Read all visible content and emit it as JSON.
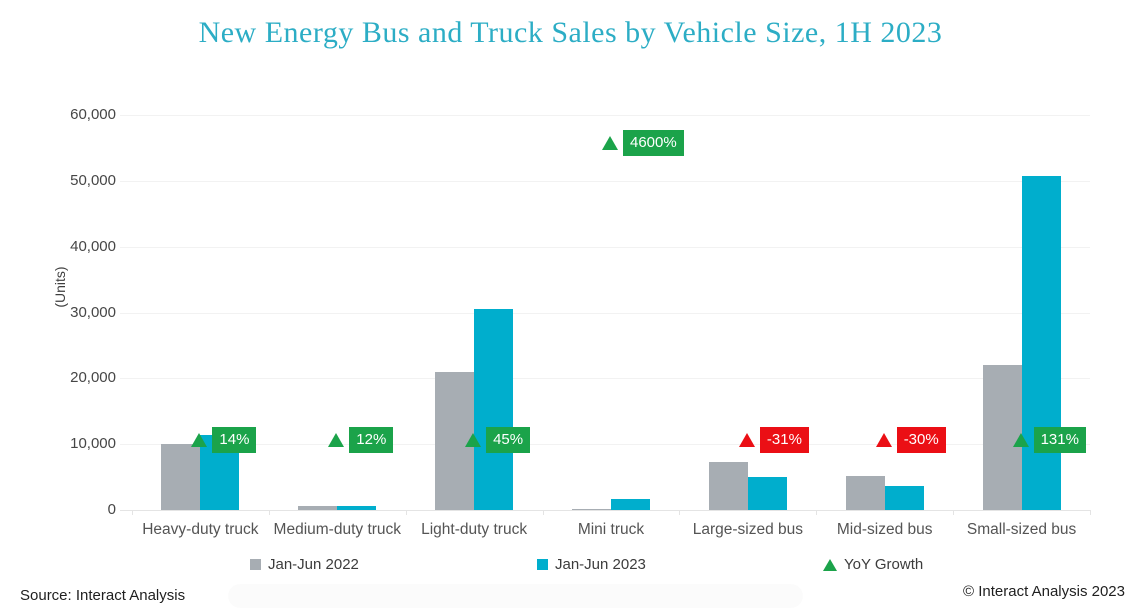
{
  "title": "New Energy Bus and Truck Sales by Vehicle Size, 1H 2023",
  "source": "Source: Interact Analysis",
  "copyright": "© Interact Analysis 2023",
  "colors": {
    "title_text": "#2CADC5",
    "bar_2022": "#A7ADB3",
    "bar_2023": "#00AECD",
    "growth_positive": "#1BA34A",
    "growth_negative": "#EB0F15",
    "axis_text": "#464646",
    "category_text": "#545454",
    "gridline": "#F2F2F2",
    "baseline": "#E4E4E4"
  },
  "legend": [
    {
      "label": "Jan-Jun 2022",
      "marker": "square",
      "color_key": "bar_2022"
    },
    {
      "label": "Jan-Jun 2023",
      "marker": "square",
      "color_key": "bar_2023"
    },
    {
      "label": "YoY Growth",
      "marker": "triangle",
      "color_key": "growth_positive"
    }
  ],
  "chart_data": {
    "type": "bar",
    "title": "New Energy Bus and Truck Sales by Vehicle Size, 1H 2023",
    "xlabel": "",
    "ylabel": "(Units)",
    "ylim": [
      0,
      60000
    ],
    "ytick_interval": 10000,
    "ytick_labels": [
      "0",
      "10,000",
      "20,000",
      "30,000",
      "40,000",
      "50,000",
      "60,000"
    ],
    "grid": "horizontal",
    "legend_position": "bottom",
    "categories": [
      "Heavy-duty truck",
      "Medium-duty truck",
      "Light-duty truck",
      "Mini truck",
      "Large-sized bus",
      "Mid-sized bus",
      "Small-sized bus"
    ],
    "series": [
      {
        "name": "Jan-Jun 2022",
        "values": [
          10000,
          600,
          21000,
          37,
          7300,
          5200,
          22000
        ]
      },
      {
        "name": "Jan-Jun 2023",
        "values": [
          11400,
          670,
          30500,
          1750,
          5000,
          3600,
          50700
        ]
      }
    ],
    "growth_series": {
      "name": "YoY Growth",
      "labels": [
        "14%",
        "12%",
        "45%",
        "4600%",
        "-31%",
        "-30%",
        "131%"
      ],
      "values_pct": [
        14,
        12,
        45,
        4600,
        -31,
        -30,
        131
      ],
      "sentiment": [
        "positive",
        "positive",
        "positive",
        "positive",
        "negative",
        "negative",
        "positive"
      ],
      "marker": "triangle-up",
      "label_y_units": [
        10600,
        10600,
        10600,
        55800,
        10600,
        10600,
        10600
      ]
    }
  }
}
